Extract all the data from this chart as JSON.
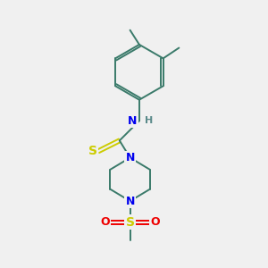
{
  "background_color": "#f0f0f0",
  "atom_colors": {
    "C": "#3a7a6a",
    "N": "#0000ee",
    "S_thio": "#cccc00",
    "S_sulfonyl": "#cccc00",
    "O": "#ee0000",
    "H": "#5a8a8a"
  },
  "bond_color": "#3a7a6a",
  "figsize": [
    3.0,
    3.0
  ],
  "dpi": 100
}
